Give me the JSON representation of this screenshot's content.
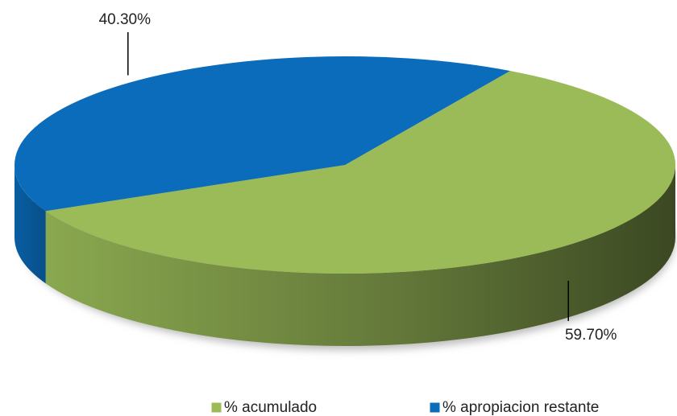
{
  "chart_data": {
    "type": "pie",
    "categories": [
      "% acumulado",
      "% apropiacion restante"
    ],
    "values": [
      59.7,
      40.3
    ],
    "value_labels": [
      "59.70%",
      "40.30%"
    ],
    "colors": [
      "#9bbb59",
      "#0a6cba"
    ],
    "legend": "bottom"
  }
}
